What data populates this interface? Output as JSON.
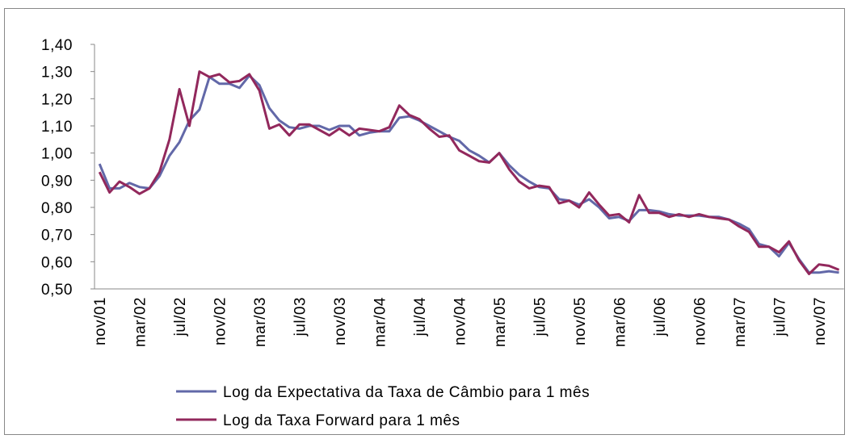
{
  "chart_data": {
    "type": "line",
    "categories": [
      "nov/01",
      null,
      null,
      null,
      "mar/02",
      null,
      null,
      null,
      "jul/02",
      null,
      null,
      null,
      "nov/02",
      null,
      null,
      null,
      "mar/03",
      null,
      null,
      null,
      "jul/03",
      null,
      null,
      null,
      "nov/03",
      null,
      null,
      null,
      "mar/04",
      null,
      null,
      null,
      "jul/04",
      null,
      null,
      null,
      "nov/04",
      null,
      null,
      null,
      "mar/05",
      null,
      null,
      null,
      "jul/05",
      null,
      null,
      null,
      "nov/05",
      null,
      null,
      null,
      "mar/06",
      null,
      null,
      null,
      "jul/06",
      null,
      null,
      null,
      "nov/06",
      null,
      null,
      null,
      "mar/07",
      null,
      null,
      null,
      "jul/07",
      null,
      null,
      null,
      "nov/07",
      null,
      null
    ],
    "series": [
      {
        "name": "Log da Expectativa da Taxa de Câmbio para 1 mês",
        "color": "#6268a8",
        "values": [
          0.96,
          0.87,
          0.87,
          0.89,
          0.875,
          0.87,
          0.915,
          0.99,
          1.04,
          1.12,
          1.16,
          1.28,
          1.255,
          1.255,
          1.24,
          1.285,
          1.25,
          1.165,
          1.12,
          1.095,
          1.09,
          1.1,
          1.1,
          1.085,
          1.1,
          1.1,
          1.065,
          1.075,
          1.08,
          1.08,
          1.13,
          1.135,
          1.12,
          1.1,
          1.08,
          1.06,
          1.045,
          1.01,
          0.99,
          0.965,
          1.0,
          0.955,
          0.92,
          0.895,
          0.875,
          0.87,
          0.83,
          0.825,
          0.81,
          0.83,
          0.8,
          0.76,
          0.765,
          0.75,
          0.79,
          0.79,
          0.785,
          0.775,
          0.77,
          0.77,
          0.77,
          0.765,
          0.765,
          0.755,
          0.74,
          0.72,
          0.665,
          0.655,
          0.62,
          0.67,
          0.61,
          0.56,
          0.56,
          0.565,
          0.56
        ]
      },
      {
        "name": "Log da Taxa Forward para 1 mês",
        "color": "#92285c",
        "values": [
          0.93,
          0.855,
          0.895,
          0.875,
          0.85,
          0.87,
          0.93,
          1.05,
          1.235,
          1.1,
          1.3,
          1.28,
          1.29,
          1.26,
          1.265,
          1.29,
          1.23,
          1.09,
          1.105,
          1.065,
          1.105,
          1.105,
          1.085,
          1.065,
          1.09,
          1.065,
          1.09,
          1.085,
          1.08,
          1.095,
          1.175,
          1.14,
          1.125,
          1.09,
          1.06,
          1.065,
          1.01,
          0.99,
          0.97,
          0.965,
          1.0,
          0.94,
          0.895,
          0.87,
          0.88,
          0.875,
          0.815,
          0.825,
          0.8,
          0.855,
          0.81,
          0.77,
          0.775,
          0.745,
          0.845,
          0.78,
          0.78,
          0.765,
          0.775,
          0.765,
          0.775,
          0.765,
          0.76,
          0.755,
          0.73,
          0.71,
          0.655,
          0.655,
          0.635,
          0.675,
          0.605,
          0.555,
          0.59,
          0.585,
          0.57
        ]
      }
    ],
    "ylim": [
      0.5,
      1.4
    ],
    "yticks": [
      {
        "value": 0.5,
        "label": "0,50"
      },
      {
        "value": 0.6,
        "label": "0,60"
      },
      {
        "value": 0.7,
        "label": "0,70"
      },
      {
        "value": 0.8,
        "label": "0,80"
      },
      {
        "value": 0.9,
        "label": "0,90"
      },
      {
        "value": 1.0,
        "label": "1,00"
      },
      {
        "value": 1.1,
        "label": "1,10"
      },
      {
        "value": 1.2,
        "label": "1,20"
      },
      {
        "value": 1.3,
        "label": "1,30"
      },
      {
        "value": 1.4,
        "label": "1,40"
      }
    ],
    "grid": false,
    "legend": "bottom"
  }
}
